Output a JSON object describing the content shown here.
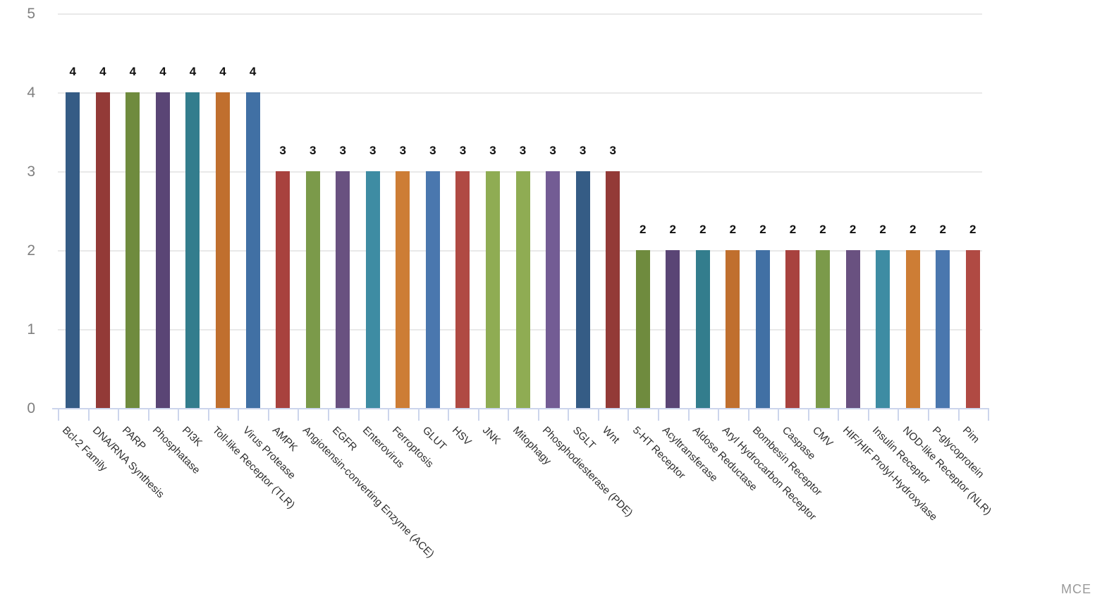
{
  "chart_data": {
    "type": "bar",
    "title": "",
    "xlabel": "",
    "ylabel": "",
    "ylim": [
      0,
      5
    ],
    "yticks": [
      0,
      1,
      2,
      3,
      4,
      5
    ],
    "grid": true,
    "legend": "none",
    "bar_value_labels_shown": true,
    "categories": [
      "Bcl-2 Family",
      "DNA/RNA Synthesis",
      "PARP",
      "Phosphatase",
      "PI3K",
      "Toll-like Receptor (TLR)",
      "Virus Protease",
      "AMPK",
      "Angiotensin-converting Enzyme (ACE)",
      "EGFR",
      "Enterovirus",
      "Ferroptosis",
      "GLUT",
      "HSV",
      "JNK",
      "Mitophagy",
      "Phosphodiesterase (PDE)",
      "SGLT",
      "Wnt",
      "5-HT Receptor",
      "Acyltransferase",
      "Aldose Reductase",
      "Aryl Hydrocarbon Receptor",
      "Bombesin Receptor",
      "Caspase",
      "CMV",
      "HIF/HIF Prolyl-Hydroxylase",
      "Insulin Receptor",
      "NOD-like Receptor (NLR)",
      "P-glycoprotein",
      "Pim"
    ],
    "values": [
      4,
      4,
      4,
      4,
      4,
      4,
      4,
      3,
      3,
      3,
      3,
      3,
      3,
      3,
      3,
      3,
      3,
      3,
      3,
      2,
      2,
      2,
      2,
      2,
      2,
      2,
      2,
      2,
      2,
      2,
      2
    ],
    "palette": [
      "#355C85",
      "#933A37",
      "#6F8B3E",
      "#5A4575",
      "#337D8D",
      "#C06F2E",
      "#4170A4",
      "#A8423E",
      "#7B9A4A",
      "#695180",
      "#3E8CA3",
      "#CD7D35",
      "#4A77AE",
      "#B04A43",
      "#8FAC53",
      "#8FAC53",
      "#735C94"
    ],
    "gridline_color": "#e9e9e9",
    "axis_line_color": "#ccd5ec",
    "ytick_label_color": "#7f7f7f",
    "value_label_color": "#111111",
    "category_label_color": "#2e2e2e"
  },
  "watermark": {
    "label": "MCE",
    "color": "#999999"
  }
}
